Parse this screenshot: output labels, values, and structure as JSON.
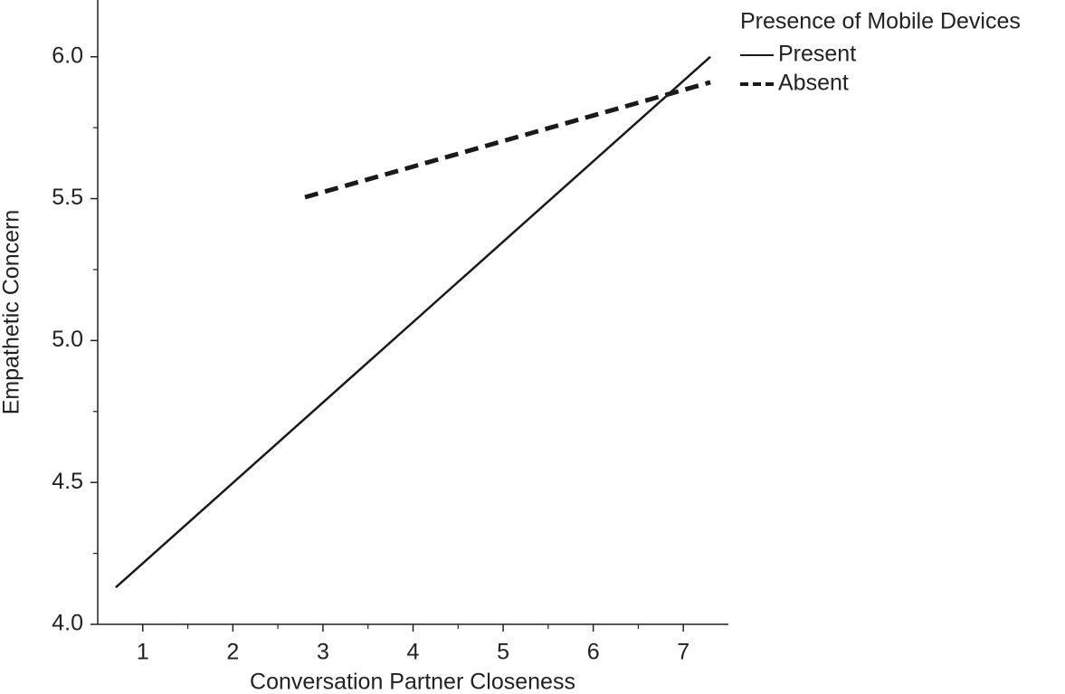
{
  "chart_data": {
    "type": "line",
    "x_label": "Conversation Partner Closeness",
    "y_label": "Empathetic Concern",
    "legend_title": "Presence of Mobile Devices",
    "legend": "outside-top-right",
    "xlim": [
      0.5,
      7.5
    ],
    "ylim": [
      4.0,
      6.2
    ],
    "xticks": [
      1,
      2,
      3,
      4,
      5,
      6,
      7
    ],
    "yticks": [
      {
        "value": 4.0,
        "label": "4.0"
      },
      {
        "value": 4.5,
        "label": "4.5"
      },
      {
        "value": 5.0,
        "label": "5.0"
      },
      {
        "value": 5.5,
        "label": "5.5"
      },
      {
        "value": 6.0,
        "label": "6.0"
      }
    ],
    "xminorticks": [
      1.5,
      2.5,
      3.5,
      4.5,
      5.5,
      6.5
    ],
    "yminorticks": [
      4.25,
      4.75,
      5.25,
      5.75
    ],
    "grid": false,
    "series": [
      {
        "name": "Present",
        "color": "#1a1a1a",
        "line_style": "solid",
        "x": [
          0.7,
          7.3
        ],
        "values": [
          4.13,
          6.0
        ]
      },
      {
        "name": "Absent",
        "color": "#1a1a1a",
        "line_style": "dashed",
        "x": [
          2.8,
          7.3
        ],
        "values": [
          5.505,
          5.91
        ]
      }
    ]
  }
}
